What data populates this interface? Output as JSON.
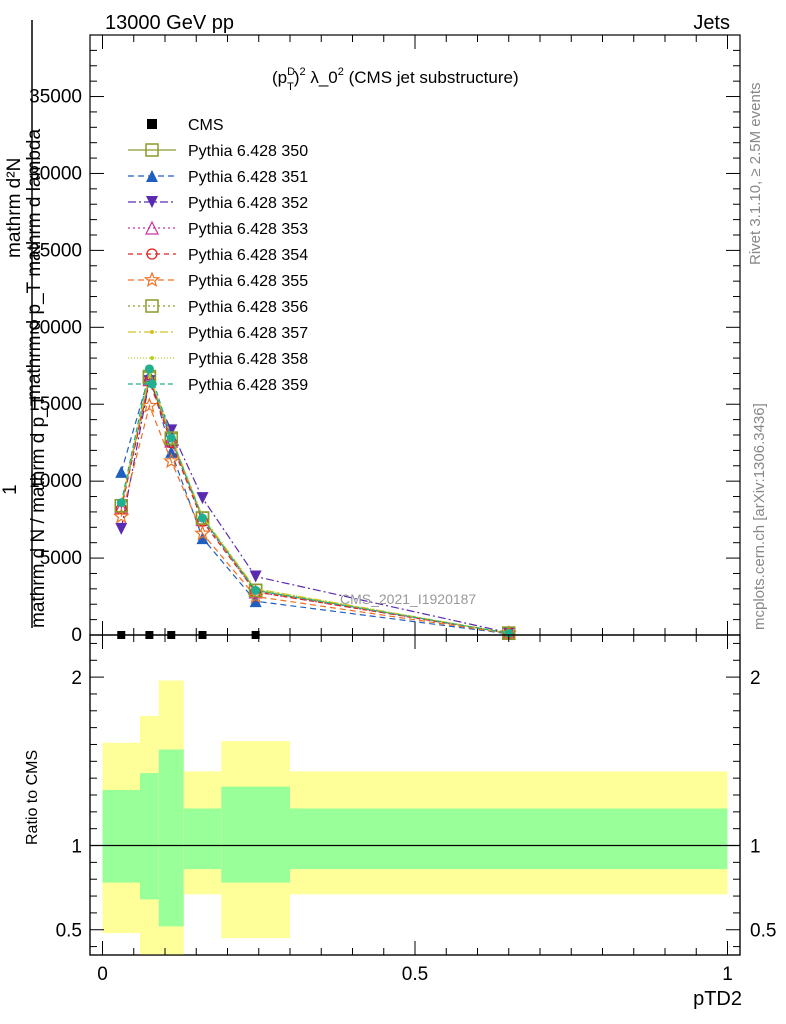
{
  "header": {
    "left": "13000 GeV pp",
    "right": "Jets"
  },
  "side": {
    "rivet": "Rivet 3.1.10, ≥ 2.5M events",
    "mcplots": "mcplots.cern.ch [arXiv:1306.3436]"
  },
  "chart_data": {
    "type": "line",
    "title": "(pTD)² λ_0² (CMS jet substructure)",
    "title_parts": {
      "a": "(p",
      "sup": "D",
      "sub": "T",
      "b": ")",
      "sq": "2",
      "c": " λ_0",
      "d": " (CMS jet substructure)"
    },
    "watermark": "CMS_2021_I1920187",
    "xlabel": "pTD2",
    "ylabel_lines": [
      "mathrm d²N",
      "mathrm d p_T mathrm d lambda",
      "1",
      "mathrm d N / mathrm d p_T"
    ],
    "ratio_ylabel": "Ratio to CMS",
    "xlim": [
      -0.02,
      1.02
    ],
    "ylim_main": [
      0,
      39000
    ],
    "ylim_ratio": [
      0.35,
      2.25
    ],
    "x_ticks": [
      "0",
      "0.5",
      "1"
    ],
    "y_ticks_main": [
      "0",
      "5000",
      "10000",
      "15000",
      "20000",
      "25000",
      "30000",
      "35000"
    ],
    "y_ticks_ratio": [
      "0.5",
      "1",
      "2"
    ],
    "x": [
      0.03,
      0.075,
      0.11,
      0.16,
      0.245,
      0.65
    ],
    "data": {
      "name": "CMS",
      "x": [
        0.03,
        0.075,
        0.11,
        0.16,
        0.245
      ],
      "y": [
        0,
        0,
        0,
        0,
        0
      ],
      "color": "#000000"
    },
    "series": [
      {
        "name": "Pythia 6.428 350",
        "color": "#8a9a2a",
        "marker": "square-open",
        "dash": "",
        "values": [
          8400,
          16700,
          12700,
          7600,
          2900,
          120
        ]
      },
      {
        "name": "Pythia 6.428 351",
        "color": "#1f5fbf",
        "marker": "triangle-up",
        "dash": "6,4",
        "values": [
          10600,
          16900,
          11900,
          6300,
          2200,
          80
        ]
      },
      {
        "name": "Pythia 6.428 352",
        "color": "#5a2bb0",
        "marker": "triangle-down",
        "dash": "8,3,2,3",
        "values": [
          6900,
          16500,
          13300,
          8900,
          3800,
          150
        ]
      },
      {
        "name": "Pythia 6.428 353",
        "color": "#cc3399",
        "marker": "triangle-open",
        "dash": "2,3",
        "values": [
          8300,
          16600,
          12600,
          7500,
          2800,
          110
        ]
      },
      {
        "name": "Pythia 6.428 354",
        "color": "#e02020",
        "marker": "circle-open",
        "dash": "5,4",
        "values": [
          8200,
          16500,
          12500,
          7400,
          2800,
          110
        ]
      },
      {
        "name": "Pythia 6.428 355",
        "color": "#f07020",
        "marker": "star-open",
        "dash": "6,4",
        "values": [
          7700,
          14900,
          11300,
          6600,
          2500,
          100
        ]
      },
      {
        "name": "Pythia 6.428 356",
        "color": "#8a9a2a",
        "marker": "square-open",
        "dash": "2,3",
        "values": [
          8400,
          16800,
          12800,
          7600,
          2900,
          120
        ]
      },
      {
        "name": "Pythia 6.428 357",
        "color": "#d8c020",
        "marker": "dot",
        "dash": "8,3,2,3",
        "values": [
          8500,
          16900,
          12900,
          7700,
          3000,
          120
        ]
      },
      {
        "name": "Pythia 6.428 358",
        "color": "#b8d020",
        "marker": "dot",
        "dash": "1,2",
        "values": [
          8500,
          17000,
          12900,
          7700,
          3000,
          120
        ]
      },
      {
        "name": "Pythia 6.428 359",
        "color": "#20b090",
        "marker": "circle-fill",
        "dash": "5,3",
        "values": [
          8600,
          17300,
          12800,
          7600,
          2900,
          120
        ]
      }
    ],
    "ratio_bands": {
      "bins": [
        {
          "x0": 0.0,
          "x1": 0.06,
          "green": [
            0.78,
            1.33
          ],
          "yellow": [
            0.48,
            1.61
          ]
        },
        {
          "x0": 0.06,
          "x1": 0.09,
          "green": [
            0.68,
            1.43
          ],
          "yellow": [
            0.35,
            1.77
          ]
        },
        {
          "x0": 0.09,
          "x1": 0.13,
          "green": [
            0.52,
            1.57
          ],
          "yellow": [
            0.35,
            1.98
          ]
        },
        {
          "x0": 0.13,
          "x1": 0.19,
          "green": [
            0.86,
            1.22
          ],
          "yellow": [
            0.71,
            1.44
          ]
        },
        {
          "x0": 0.19,
          "x1": 0.3,
          "green": [
            0.78,
            1.35
          ],
          "yellow": [
            0.45,
            1.62
          ]
        },
        {
          "x0": 0.3,
          "x1": 1.0,
          "green": [
            0.86,
            1.22
          ],
          "yellow": [
            0.71,
            1.44
          ]
        }
      ],
      "green_color": "#99ff99",
      "yellow_color": "#ffff99"
    }
  }
}
